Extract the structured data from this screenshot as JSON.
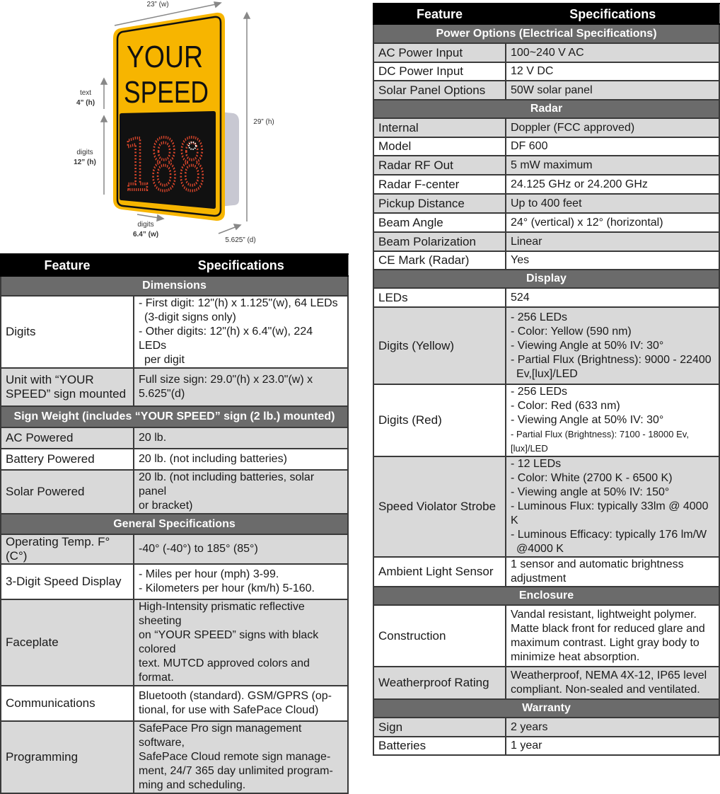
{
  "sign_figure": {
    "sign_text_line1": "YOUR",
    "sign_text_line2": "SPEED",
    "display_digits": "188",
    "colors": {
      "sign_yellow": "#f7b500",
      "led_red": "#d9452b",
      "panel": "#111111",
      "body_gray": "#c8c8d2"
    },
    "labels": {
      "width": "23” (w)",
      "text_label": "text",
      "text_height": "4” (h)",
      "digits_label": "digits",
      "digits_height": "12” (h)",
      "total_height": "29” (h)",
      "digit_width_label": "digits",
      "digit_width": "6.4” (w)",
      "depth": "5.625” (d)"
    }
  },
  "left_table": {
    "headers": [
      "Feature",
      "Specifications"
    ],
    "sections": [
      {
        "title": "Dimensions",
        "rows": [
          {
            "feature": "Digits",
            "spec": [
              "- First digit: 12\"(h) x 1.125\"(w), 64 LEDs",
              " (3-digit signs only)",
              "- Other digits: 12\"(h) x 6.4\"(w), 224 LEDs",
              " per digit"
            ]
          },
          {
            "feature": "Unit with “YOUR SPEED” sign mounted",
            "spec": [
              "Full size sign: 29.0\"(h) x 23.0\"(w) x",
              "5.625\"(d)"
            ]
          }
        ]
      },
      {
        "title": "Sign Weight (includes “YOUR SPEED” sign (2 lb.) mounted)",
        "rows": [
          {
            "feature": "AC Powered",
            "spec": [
              "20 lb."
            ]
          },
          {
            "feature": "Battery Powered",
            "spec": [
              "20 lb. (not including batteries)"
            ]
          },
          {
            "feature": "Solar Powered",
            "spec": [
              "20 lb. (not including batteries, solar panel",
              "or bracket)"
            ]
          }
        ]
      },
      {
        "title": "General Specifications",
        "rows": [
          {
            "feature": "Operating Temp. F° (C°)",
            "spec": [
              "-40° (-40°) to 185° (85°)"
            ]
          },
          {
            "feature": "3-Digit Speed Display",
            "spec": [
              "- Miles per hour (mph) 3-99.",
              "- Kilometers per hour (km/h) 5-160."
            ]
          },
          {
            "feature": "Faceplate",
            "spec": [
              "High-Intensity prismatic reflective sheeting",
              "on “YOUR SPEED” signs with black colored",
              "text. MUTCD approved colors and format."
            ]
          },
          {
            "feature": "Communications",
            "spec": [
              "Bluetooth (standard). GSM/GPRS (op-",
              "tional, for use with SafePace Cloud)"
            ]
          },
          {
            "feature": "Programming",
            "spec": [
              "SafePace Pro sign management software,",
              "SafePace Cloud remote sign manage-",
              "ment, 24/7 365 day unlimited program-",
              "ming and scheduling."
            ]
          }
        ]
      }
    ]
  },
  "right_table": {
    "headers": [
      "Feature",
      "Specifications"
    ],
    "sections": [
      {
        "title": "Power Options (Electrical Specifications)",
        "rows": [
          {
            "feature": "AC Power Input",
            "spec": [
              "100~240 V AC"
            ]
          },
          {
            "feature": "DC Power Input",
            "spec": [
              "12 V DC"
            ]
          },
          {
            "feature": "Solar Panel Options",
            "spec": [
              "50W solar panel"
            ]
          }
        ]
      },
      {
        "title": "Radar",
        "rows": [
          {
            "feature": "Internal",
            "spec": [
              "Doppler (FCC approved)"
            ]
          },
          {
            "feature": "Model",
            "spec": [
              "DF 600"
            ]
          },
          {
            "feature": "Radar RF Out",
            "spec": [
              "5 mW maximum"
            ]
          },
          {
            "feature": "Radar F-center",
            "spec": [
              "24.125 GHz or 24.200 GHz"
            ]
          },
          {
            "feature": "Pickup Distance",
            "spec": [
              "Up to 400 feet"
            ]
          },
          {
            "feature": "Beam Angle",
            "spec": [
              "24° (vertical) x 12° (horizontal)"
            ]
          },
          {
            "feature": "Beam Polarization",
            "spec": [
              "Linear"
            ]
          },
          {
            "feature": "CE Mark (Radar)",
            "spec": [
              "Yes"
            ]
          }
        ]
      },
      {
        "title": "Display",
        "rows": [
          {
            "feature": "LEDs",
            "spec": [
              "524"
            ]
          },
          {
            "feature": "Digits (Yellow)",
            "spec": [
              "- 256 LEDs",
              "- Color: Yellow (590 nm)",
              "- Viewing Angle at 50% IV: 30°",
              "- Partial Flux (Brightness): 9000 - 22400",
              " Ev,[lux]/LED"
            ]
          },
          {
            "feature": "Digits (Red)",
            "spec": [
              "- 256 LEDs",
              "- Color: Red (633 nm)",
              "- Viewing Angle at 50% IV: 30°",
              "- Partial Flux (Brightness): 7100 - 18000 Ev,[lux]/LED"
            ]
          },
          {
            "feature": "Speed Violator Strobe",
            "spec": [
              "- 12 LEDs",
              "- Color: White (2700 K - 6500 K)",
              "- Viewing angle at 50% IV: 150°",
              "- Luminous Flux: typically 33lm @ 4000 K",
              "- Luminous Efficacy: typically 176 lm/W",
              " @4000 K"
            ]
          },
          {
            "feature": "Ambient Light Sensor",
            "spec": [
              "1 sensor and automatic brightness adjustment"
            ]
          }
        ]
      },
      {
        "title": "Enclosure",
        "rows": [
          {
            "feature": "Construction",
            "spec": [
              "Vandal resistant, lightweight polymer.",
              "Matte black front for reduced glare and",
              "maximum contrast. Light gray body to",
              "minimize heat absorption."
            ]
          },
          {
            "feature": "Weatherproof Rating",
            "spec": [
              "Weatherproof, NEMA 4X-12, IP65 level",
              "compliant. Non-sealed and ventilated."
            ]
          }
        ]
      },
      {
        "title": "Warranty",
        "rows": [
          {
            "feature": "Sign",
            "spec": [
              "2 years"
            ]
          },
          {
            "feature": "Batteries",
            "spec": [
              "1 year"
            ]
          }
        ]
      }
    ]
  }
}
